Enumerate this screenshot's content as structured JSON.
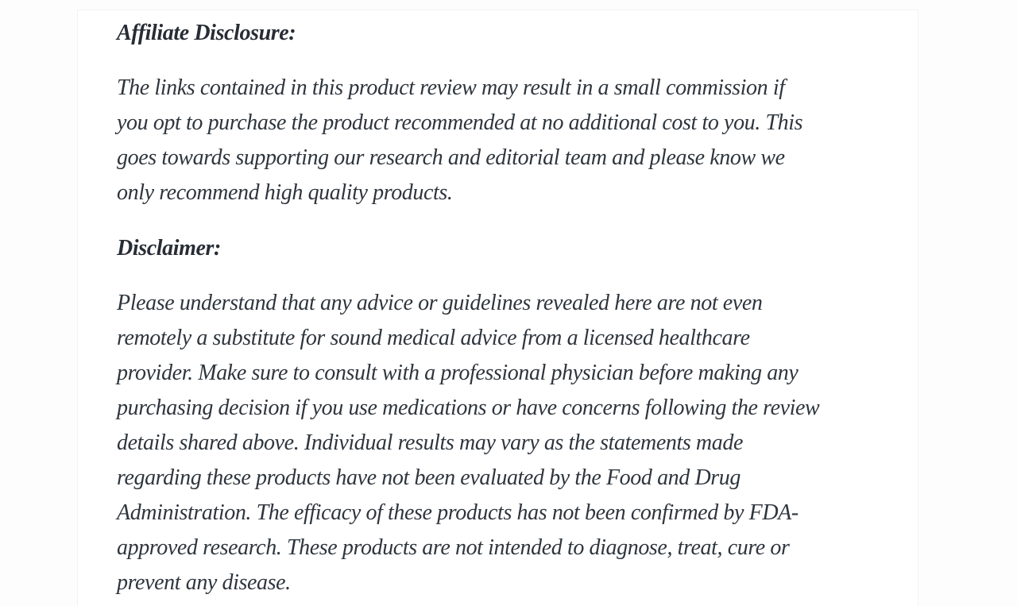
{
  "page": {
    "background_color": "#fdfdfd",
    "card_background_color": "#ffffff",
    "text_color": "#2e353d"
  },
  "article": {
    "sections": [
      {
        "heading": "Affiliate Disclosure:",
        "body": "The links contained in this product review may result in a small commission if\nyou opt to purchase the product recommended at no additional cost to you. This\ngoes towards supporting our research and editorial team and please know we\nonly recommend high quality products."
      },
      {
        "heading": "Disclaimer:",
        "body": "Please understand that any advice or guidelines revealed here are not even\nremotely a substitute for sound medical advice from a licensed healthcare\nprovider. Make sure to consult with a professional physician before making any\npurchasing decision if you use medications or have concerns following the review\ndetails shared above. Individual results may vary as the statements made\nregarding these products have not been evaluated by the Food and Drug\nAdministration. The efficacy of these products has not been confirmed by FDA-\napproved research. These products are not intended to diagnose, treat, cure or\nprevent any disease."
      }
    ]
  }
}
